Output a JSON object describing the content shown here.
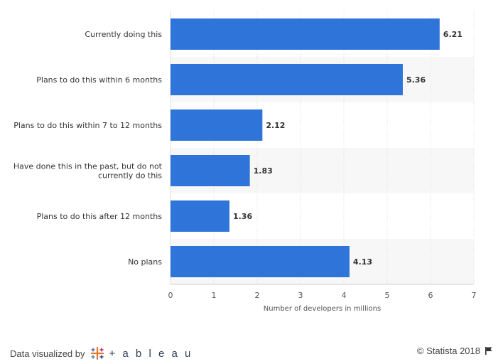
{
  "chart_data": {
    "type": "bar",
    "orientation": "horizontal",
    "categories": [
      "Currently doing this",
      "Plans to do this within 6 months",
      "Plans to do this within 7 to 12 months",
      "Have done this in the past, but do not currently do this",
      "Plans to do this after 12 months",
      "No plans"
    ],
    "category_lines": [
      [
        "Currently doing this"
      ],
      [
        "Plans to do this within 6 months"
      ],
      [
        "Plans to do this within 7 to 12 months"
      ],
      [
        "Have done this in the past, but do not",
        "currently do this"
      ],
      [
        "Plans to do this after 12 months"
      ],
      [
        "No plans"
      ]
    ],
    "values": [
      6.21,
      5.36,
      2.12,
      1.83,
      1.36,
      4.13
    ],
    "value_labels": [
      "6.21",
      "5.36",
      "2.12",
      "1.83",
      "1.36",
      "4.13"
    ],
    "xlabel": "Number of developers in millions",
    "xlim": [
      0,
      7
    ],
    "xticks": [
      "0",
      "1",
      "2",
      "3",
      "4",
      "5",
      "6",
      "7"
    ],
    "bar_color": "#2f74d8",
    "band_color": "#f7f7f7",
    "grid": true
  },
  "footer": {
    "visualized_by": "Data visualized by",
    "tableau_word": "+ a b l e a u",
    "copyright": "© Statista 2018"
  }
}
